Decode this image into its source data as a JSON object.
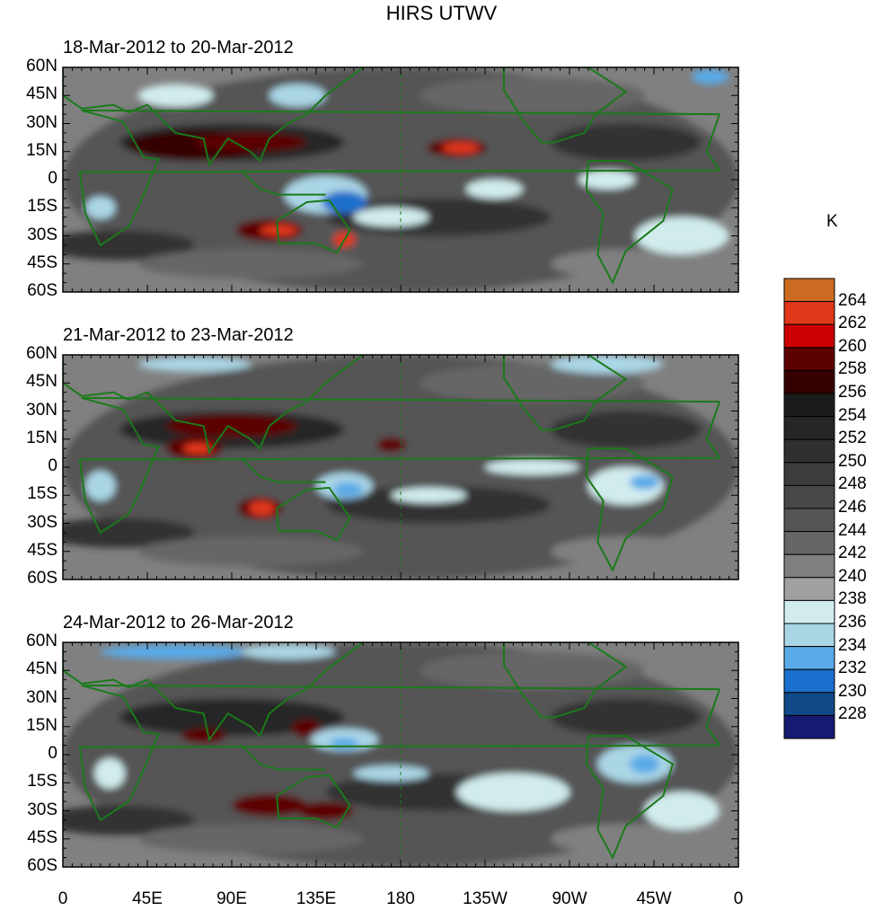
{
  "title": "HIRS UTWV",
  "panels": [
    {
      "title": "18-Mar-2012 to 20-Mar-2012"
    },
    {
      "title": "21-Mar-2012 to 23-Mar-2012"
    },
    {
      "title": "24-Mar-2012 to 26-Mar-2012"
    }
  ],
  "y_ticks": [
    "60N",
    "45N",
    "30N",
    "15N",
    "0",
    "15S",
    "30S",
    "45S",
    "60S"
  ],
  "x_ticks": [
    "0",
    "45E",
    "90E",
    "135E",
    "180",
    "135W",
    "90W",
    "45W",
    "0"
  ],
  "colorbar": {
    "unit": "K",
    "labels": [
      "264",
      "262",
      "260",
      "258",
      "256",
      "254",
      "252",
      "250",
      "248",
      "246",
      "244",
      "242",
      "240",
      "238",
      "236",
      "234",
      "232",
      "230",
      "228"
    ],
    "colors": [
      "#cc6a22",
      "#e0381a",
      "#cc0000",
      "#5c0000",
      "#360000",
      "#1c1c1c",
      "#262626",
      "#303030",
      "#3c3c3c",
      "#484848",
      "#555555",
      "#666666",
      "#808080",
      "#a0a0a0",
      "#d2ecee",
      "#aad6e6",
      "#5aaae8",
      "#1a70cc",
      "#124a88",
      "#161a70"
    ]
  },
  "colors": {
    "coastline": "#1a7a1a"
  }
}
